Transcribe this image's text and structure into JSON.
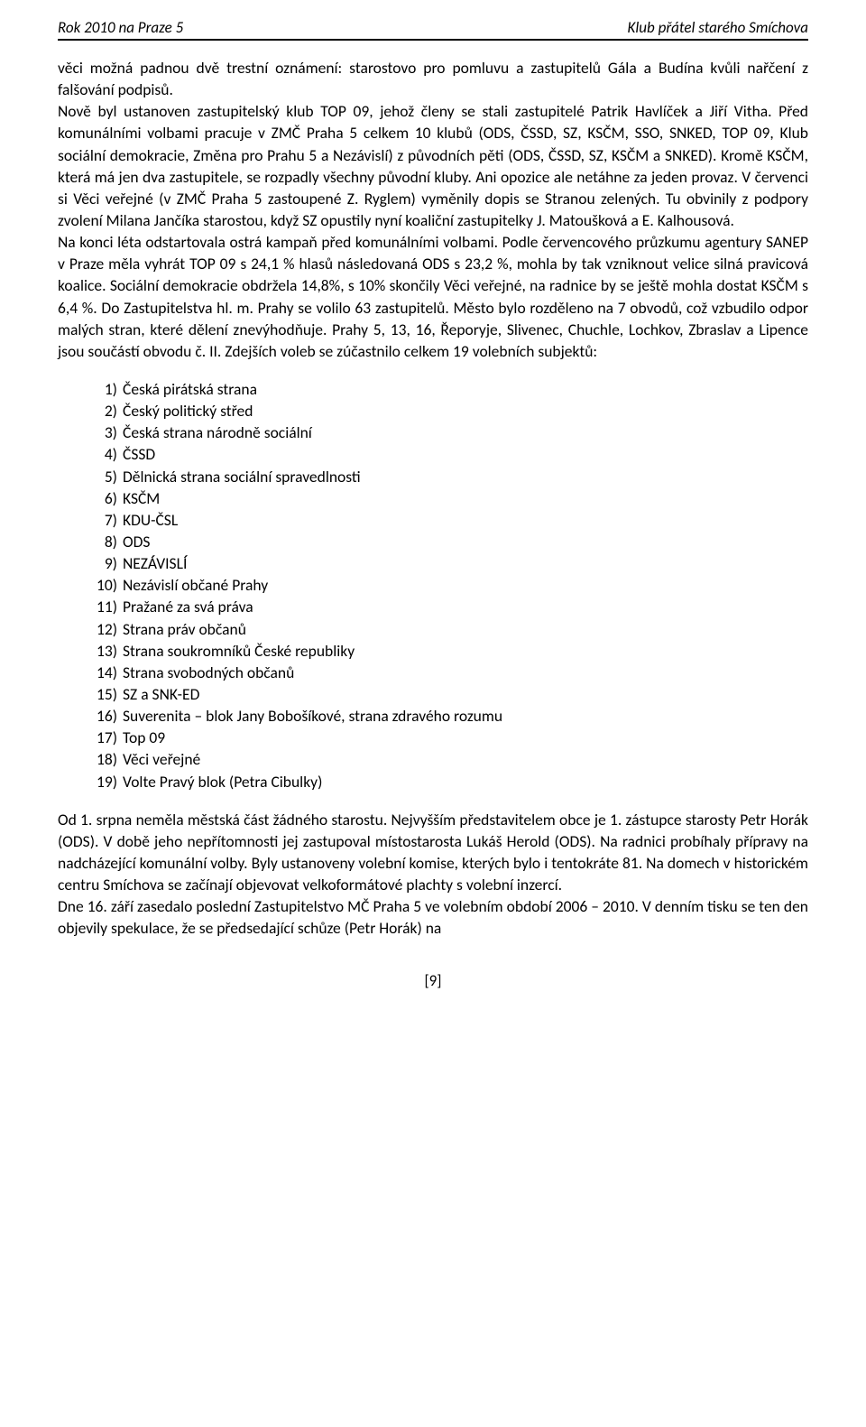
{
  "header": {
    "left": "Rok 2010 na Praze 5",
    "right": "Klub přátel starého Smíchova"
  },
  "body": {
    "para1": "věci možná padnou dvě trestní oznámení: starostovo pro pomluvu a zastupitelů Gála a Budína kvůli nařčení z falšování podpisů.",
    "para2": "Nově byl ustanoven zastupitelský klub TOP 09, jehož členy se stali zastupitelé Patrik Havlíček a Jiří Vitha. Před komunálními volbami pracuje v ZMČ Praha 5 celkem 10 klubů (ODS, ČSSD, SZ, KSČM, SSO, SNKED, TOP 09, Klub sociální demokracie, Změna pro Prahu 5 a Nezávislí) z původních pěti (ODS, ČSSD, SZ, KSČM a SNKED). Kromě KSČM, která má jen dva zastupitele, se rozpadly všechny původní kluby.  Ani opozice ale netáhne za jeden provaz. V červenci si Věci veřejné (v ZMČ Praha 5 zastoupené Z. Ryglem) vyměnily dopis se Stranou zelených. Tu obvinily z podpory zvolení Milana Jančíka starostou, když SZ opustily nyní koaliční zastupitelky J. Matoušková a E. Kalhousová.",
    "para3": "Na konci léta odstartovala ostrá kampaň před komunálními volbami. Podle červencového průzkumu agentury SANEP v Praze měla vyhrát TOP 09 s 24,1 % hlasů následovaná ODS s 23,2 %, mohla by tak vzniknout velice silná pravicová koalice. Sociální demokracie obdržela 14,8%, s 10% skončily Věci veřejné, na radnice by se ještě mohla dostat KSČM s 6,4 %. Do Zastupitelstva hl. m. Prahy se volilo 63 zastupitelů. Město bylo rozděleno na 7 obvodů, což vzbudilo odpor malých stran, které dělení znevýhodňuje. Prahy 5, 13, 16, Řeporyje, Slivenec, Chuchle, Lochkov, Zbraslav a Lipence jsou součástí obvodu č. II. Zdejších voleb se zúčastnilo celkem 19 volebních subjektů:"
  },
  "list": [
    "Česká pirátská strana",
    "Český politický střed",
    "Česká strana národně sociální",
    "ČSSD",
    "Dělnická strana sociální spravedlnosti",
    "KSČM",
    "KDU-ČSL",
    "ODS",
    "NEZÁVISLÍ",
    "Nezávislí občané Prahy",
    "Pražané za svá práva",
    "Strana práv občanů",
    "Strana soukromníků České republiky",
    "Strana svobodných občanů",
    "SZ a SNK-ED",
    "Suverenita – blok Jany Bobošíkové, strana zdravého rozumu",
    "Top 09",
    "Věci veřejné",
    "Volte Pravý blok (Petra Cibulky)"
  ],
  "body2": {
    "para4": "Od 1. srpna neměla městská část žádného starostu. Nejvyšším představitelem obce je 1. zástupce starosty Petr Horák (ODS). V době jeho nepřítomnosti jej zastupoval místostarosta Lukáš Herold (ODS). Na radnici probíhaly přípravy na nadcházející komunální volby. Byly ustanoveny volební komise, kterých bylo i tentokráte 81. Na domech v historickém centru Smíchova se začínají objevovat velkoformátové plachty s volební inzercí.",
    "para5": "Dne 16. září zasedalo poslední Zastupitelstvo MČ Praha 5 ve volebním období 2006 – 2010. V denním tisku se ten den objevily spekulace, že se předsedající schůze (Petr Horák) na"
  },
  "footer": {
    "page": "[9]"
  }
}
